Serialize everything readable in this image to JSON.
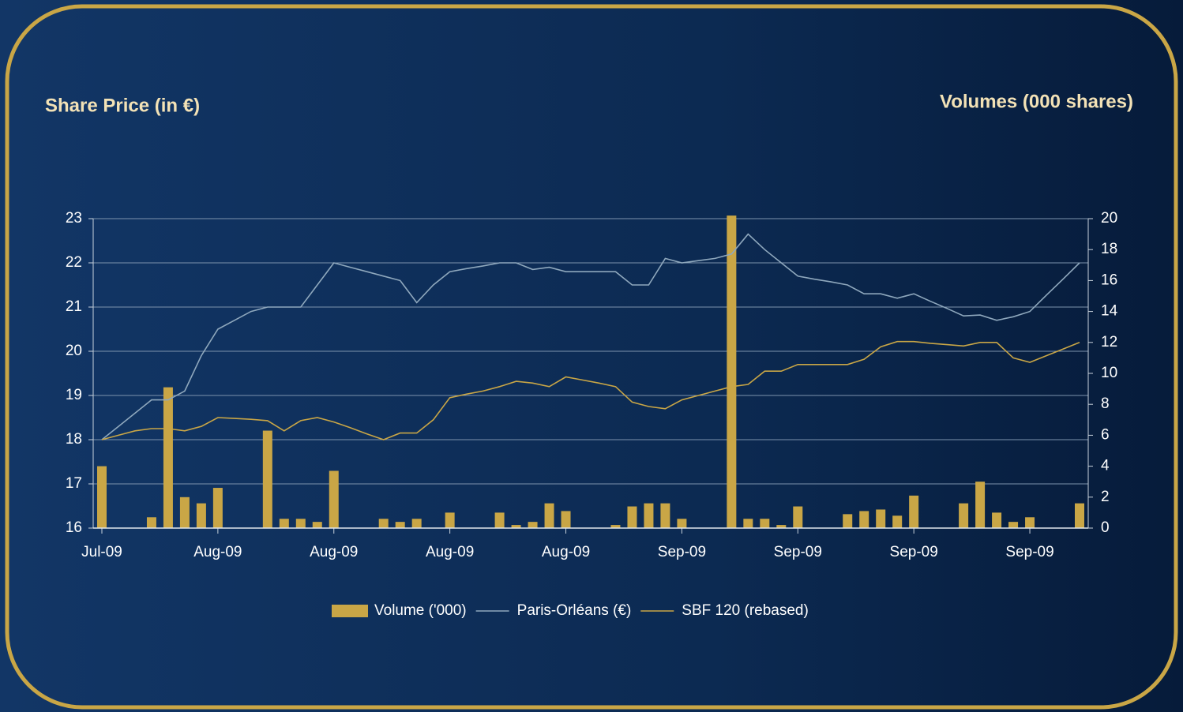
{
  "chart_data": {
    "type": "bar_line",
    "title_left": "Share Price (in €)",
    "title_right": "Volumes (000 shares)",
    "categories": [
      "Jul-09",
      null,
      null,
      null,
      null,
      null,
      null,
      "Aug-09",
      null,
      null,
      null,
      null,
      null,
      null,
      "Aug-09",
      null,
      null,
      null,
      null,
      null,
      null,
      "Aug-09",
      null,
      null,
      null,
      null,
      null,
      null,
      "Aug-09",
      null,
      null,
      null,
      null,
      null,
      null,
      "Sep-09",
      null,
      null,
      null,
      null,
      null,
      null,
      "Sep-09",
      null,
      null,
      null,
      null,
      null,
      null,
      "Sep-09",
      null,
      null,
      null,
      null,
      null,
      null,
      "Sep-09",
      null,
      null,
      null
    ],
    "series": [
      {
        "name": "Volume ('000)",
        "type": "bar",
        "axis": "y2",
        "color": "#c9a646",
        "values": [
          4.0,
          0,
          0,
          0.7,
          9.1,
          2.0,
          1.6,
          2.6,
          0,
          0,
          6.3,
          0.6,
          0.6,
          0.4,
          3.7,
          0,
          0,
          0.6,
          0.4,
          0.6,
          0,
          1.0,
          0,
          0,
          1.0,
          0.2,
          0.4,
          1.6,
          1.1,
          0,
          0,
          0.2,
          1.4,
          1.6,
          1.6,
          0.6,
          0,
          0,
          20.2,
          0.6,
          0.6,
          0.2,
          1.4,
          0,
          0,
          0.9,
          1.1,
          1.2,
          0.8,
          2.1,
          0,
          0,
          1.6,
          3.0,
          1.0,
          0.4,
          0.7,
          0,
          0,
          1.6
        ]
      },
      {
        "name": "Paris-Orléans (€)",
        "type": "line",
        "axis": "y",
        "color": "#8fa8bd",
        "values": [
          18.0,
          18.3,
          18.6,
          18.9,
          18.9,
          19.1,
          19.9,
          20.5,
          20.7,
          20.9,
          21.0,
          21.0,
          21.0,
          21.5,
          22.0,
          21.9,
          21.8,
          21.7,
          21.6,
          21.1,
          21.5,
          21.8,
          21.87,
          21.93,
          22.0,
          22.0,
          21.85,
          21.9,
          21.8,
          21.8,
          21.8,
          21.8,
          21.5,
          21.5,
          22.1,
          22.0,
          22.05,
          22.1,
          22.2,
          22.65,
          22.3,
          22.0,
          21.7,
          21.63,
          21.57,
          21.5,
          21.3,
          21.3,
          21.2,
          21.3,
          21.13,
          20.97,
          20.8,
          20.82,
          20.7,
          20.78,
          20.9,
          21.27,
          21.63,
          22.0
        ]
      },
      {
        "name": "SBF 120 (rebased)",
        "type": "line",
        "axis": "y",
        "color": "#c9a646",
        "values": [
          18.0,
          18.1,
          18.2,
          18.25,
          18.25,
          18.2,
          18.3,
          18.5,
          18.48,
          18.46,
          18.43,
          18.2,
          18.43,
          18.5,
          18.4,
          18.27,
          18.13,
          18.0,
          18.15,
          18.15,
          18.45,
          18.95,
          19.03,
          19.1,
          19.2,
          19.32,
          19.28,
          19.2,
          19.42,
          19.35,
          19.28,
          19.2,
          18.85,
          18.75,
          18.7,
          18.9,
          19.0,
          19.1,
          19.2,
          19.25,
          19.55,
          19.55,
          19.7,
          19.7,
          19.7,
          19.7,
          19.82,
          20.1,
          20.22,
          20.22,
          20.18,
          20.15,
          20.12,
          20.2,
          20.2,
          19.85,
          19.75,
          19.9,
          20.05,
          20.2
        ]
      }
    ],
    "ylim": [
      16,
      23
    ],
    "yticks": [
      16,
      17,
      18,
      19,
      20,
      21,
      22,
      23
    ],
    "y2lim": [
      0,
      20
    ],
    "y2ticks": [
      0,
      2,
      4,
      6,
      8,
      10,
      12,
      14,
      16,
      18,
      20
    ],
    "grid": true,
    "legend": "bottom"
  }
}
